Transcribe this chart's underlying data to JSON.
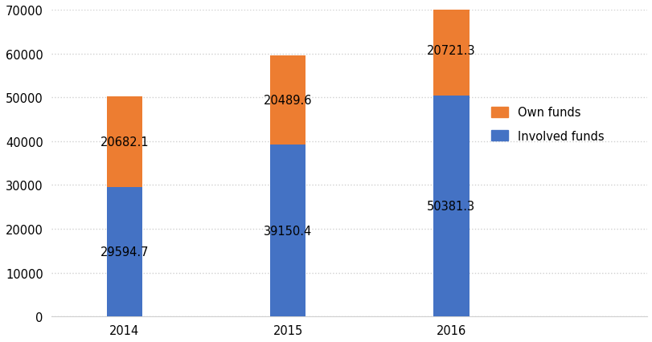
{
  "years": [
    "2014",
    "2015",
    "2016"
  ],
  "involved_funds": [
    29594.7,
    39150.4,
    50381.3
  ],
  "own_funds": [
    20682.1,
    20489.6,
    20721.3
  ],
  "involved_color": "#4472C4",
  "own_color": "#ED7D31",
  "ylim": [
    0,
    70000
  ],
  "yticks": [
    0,
    10000,
    20000,
    30000,
    40000,
    50000,
    60000,
    70000
  ],
  "legend_labels": [
    "Own funds",
    "Involved funds"
  ],
  "bar_width": 0.22,
  "grid_color": "#d0d0d0",
  "background_color": "#ffffff",
  "label_fontsize": 10.5,
  "tick_fontsize": 10.5,
  "legend_fontsize": 10.5
}
